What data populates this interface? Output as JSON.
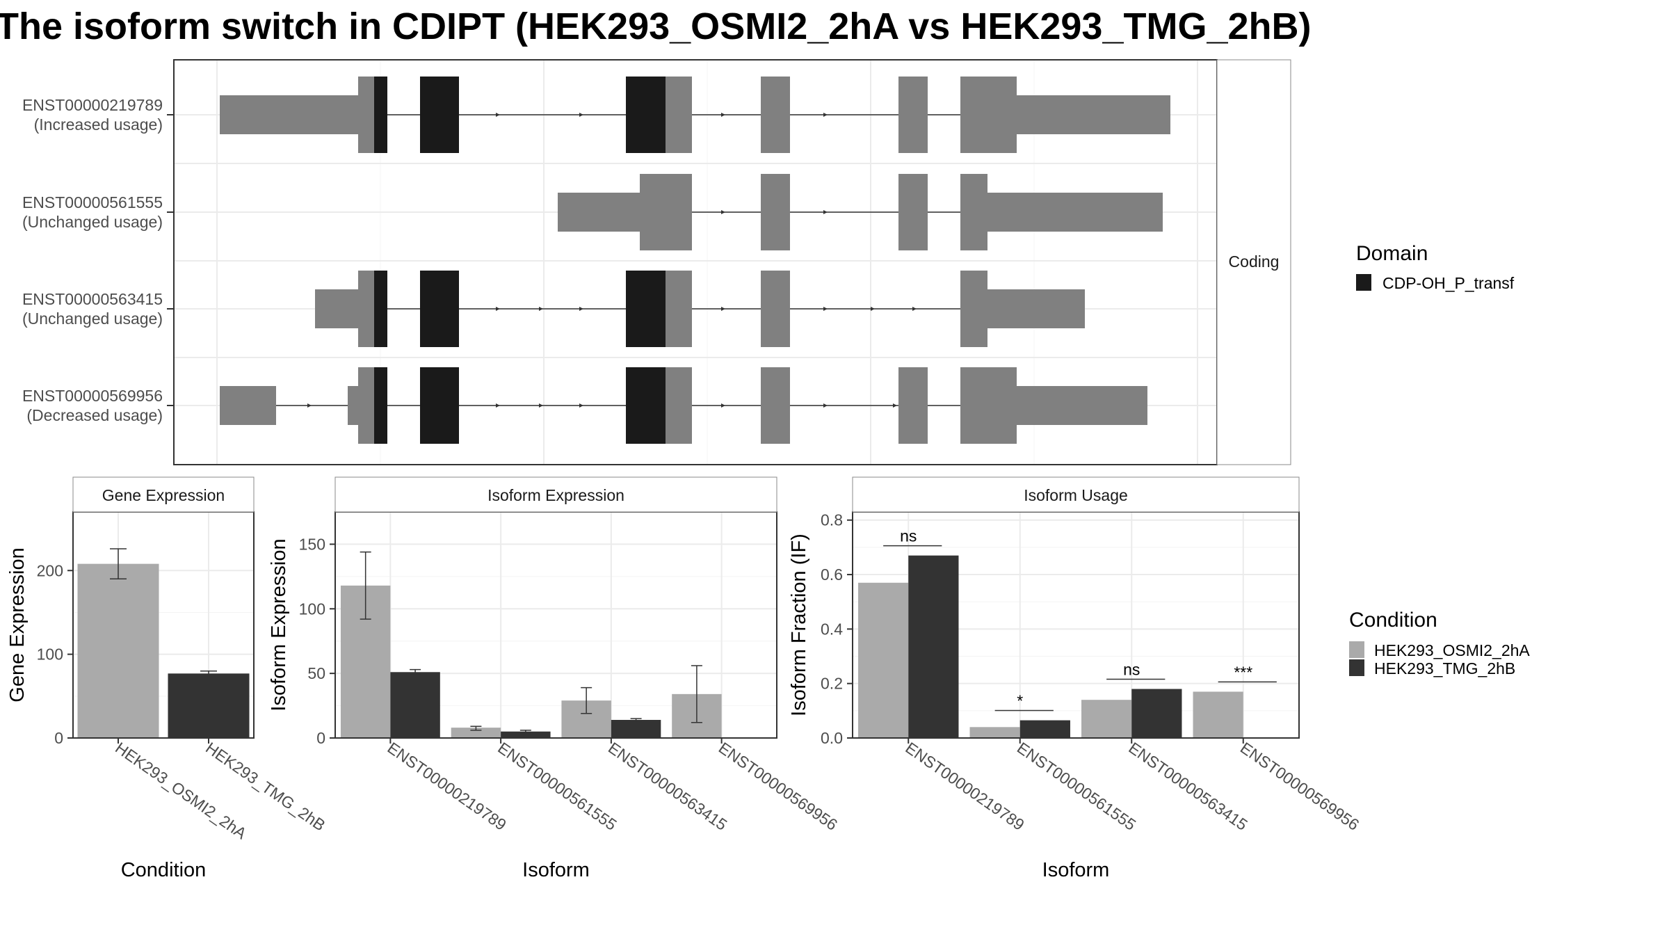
{
  "title": "The isoform switch in CDIPT (HEK293_OSMI2_2hA vs HEK293_TMG_2hB)",
  "structure": {
    "facet_label": "Coding",
    "isoforms": [
      {
        "id": "ENST00000219789",
        "usage": "(Increased usage)"
      },
      {
        "id": "ENST00000561555",
        "usage": "(Unchanged usage)"
      },
      {
        "id": "ENST00000563415",
        "usage": "(Unchanged usage)"
      },
      {
        "id": "ENST00000569956",
        "usage": "(Decreased usage)"
      }
    ],
    "domain_legend": {
      "title": "Domain",
      "items": [
        {
          "label": "CDP-OH_P_transf",
          "color": "#1a1a1a"
        }
      ]
    }
  },
  "condition_legend": {
    "title": "Condition",
    "items": [
      {
        "label": "HEK293_OSMI2_2hA",
        "color": "#aaaaaa"
      },
      {
        "label": "HEK293_TMG_2hB",
        "color": "#333333"
      }
    ]
  },
  "chart_data": [
    {
      "type": "bar",
      "title": "Gene Expression",
      "xlabel": "Condition",
      "ylabel": "Gene Expression",
      "categories": [
        "HEK293_OSMI2_2hA",
        "HEK293_TMG_2hB"
      ],
      "values": [
        208,
        77
      ],
      "errors": [
        [
          190,
          226
        ],
        [
          75,
          80
        ]
      ],
      "ylim": [
        0,
        270
      ],
      "yticks": [
        0,
        100,
        200
      ]
    },
    {
      "type": "bar",
      "title": "Isoform Expression",
      "xlabel": "Isoform",
      "ylabel": "Isoform Expression",
      "categories": [
        "ENST00000219789",
        "ENST00000561555",
        "ENST00000563415",
        "ENST00000569956"
      ],
      "series": [
        {
          "name": "HEK293_OSMI2_2hA",
          "values": [
            118,
            8,
            29,
            34
          ],
          "errors": [
            [
              92,
              144
            ],
            [
              6,
              9
            ],
            [
              19,
              39
            ],
            [
              12,
              56
            ]
          ]
        },
        {
          "name": "HEK293_TMG_2hB",
          "values": [
            51,
            5,
            14,
            0
          ],
          "errors": [
            [
              49,
              53
            ],
            [
              4,
              6
            ],
            [
              13,
              15
            ],
            [
              0,
              0
            ]
          ]
        }
      ],
      "ylim": [
        0,
        175
      ],
      "yticks": [
        0,
        50,
        100,
        150
      ]
    },
    {
      "type": "bar",
      "title": "Isoform Usage",
      "xlabel": "Isoform",
      "ylabel": "Isoform Fraction (IF)",
      "categories": [
        "ENST00000219789",
        "ENST00000561555",
        "ENST00000563415",
        "ENST00000569956"
      ],
      "series": [
        {
          "name": "HEK293_OSMI2_2hA",
          "values": [
            0.57,
            0.04,
            0.14,
            0.17
          ]
        },
        {
          "name": "HEK293_TMG_2hB",
          "values": [
            0.67,
            0.065,
            0.18,
            0.0
          ]
        }
      ],
      "significance": [
        "ns",
        "*",
        "ns",
        "***"
      ],
      "ylim": [
        0,
        0.83
      ],
      "yticks": [
        0.0,
        0.2,
        0.4,
        0.6,
        0.8
      ]
    }
  ]
}
